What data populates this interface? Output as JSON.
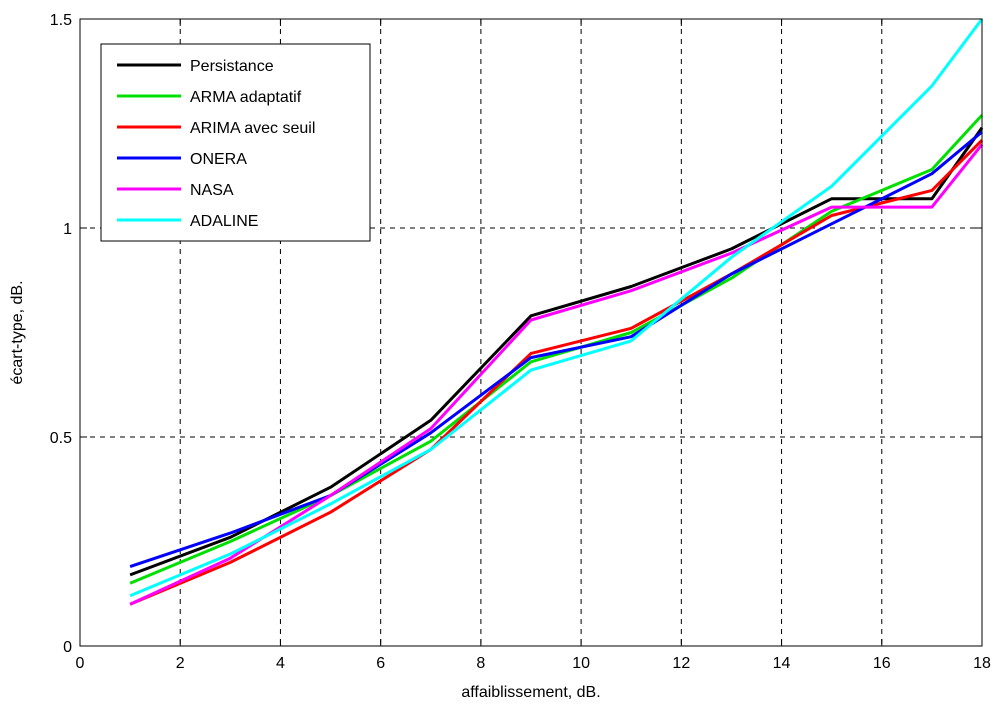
{
  "chart_data": {
    "type": "line",
    "title": "",
    "xlabel": "affaiblissement, dB.",
    "ylabel": "écart-type, dB.",
    "xlim": [
      0,
      18
    ],
    "ylim": [
      0,
      1.5
    ],
    "xticks": [
      0,
      2,
      4,
      6,
      8,
      10,
      12,
      14,
      16,
      18
    ],
    "yticks": [
      0,
      0.5,
      1,
      1.5
    ],
    "ytick_labels": [
      "0",
      "0.5",
      "1",
      "1.5"
    ],
    "grid": true,
    "legend_position": "top-left",
    "x": [
      1,
      3,
      5,
      7,
      9,
      11,
      13,
      15,
      17,
      18
    ],
    "series": [
      {
        "name": "Persistance",
        "color": "#000000",
        "values": [
          0.17,
          0.26,
          0.38,
          0.54,
          0.79,
          0.86,
          0.95,
          1.07,
          1.07,
          1.24
        ]
      },
      {
        "name": "ARMA adaptatif",
        "color": "#00e000",
        "values": [
          0.15,
          0.25,
          0.36,
          0.49,
          0.68,
          0.75,
          0.88,
          1.04,
          1.14,
          1.27
        ]
      },
      {
        "name": "ARIMA avec seuil",
        "color": "#ff0000",
        "values": [
          0.1,
          0.2,
          0.32,
          0.47,
          0.7,
          0.76,
          0.89,
          1.03,
          1.09,
          1.21
        ]
      },
      {
        "name": "ONERA",
        "color": "#0000ff",
        "values": [
          0.19,
          0.27,
          0.36,
          0.51,
          0.69,
          0.74,
          0.89,
          1.01,
          1.13,
          1.23
        ]
      },
      {
        "name": "NASA",
        "color": "#ff00ff",
        "values": [
          0.1,
          0.21,
          0.36,
          0.52,
          0.78,
          0.85,
          0.94,
          1.05,
          1.05,
          1.2
        ]
      },
      {
        "name": "ADALINE",
        "color": "#00ffff",
        "values": [
          0.12,
          0.22,
          0.34,
          0.47,
          0.66,
          0.73,
          0.93,
          1.1,
          1.34,
          1.5
        ]
      }
    ]
  }
}
